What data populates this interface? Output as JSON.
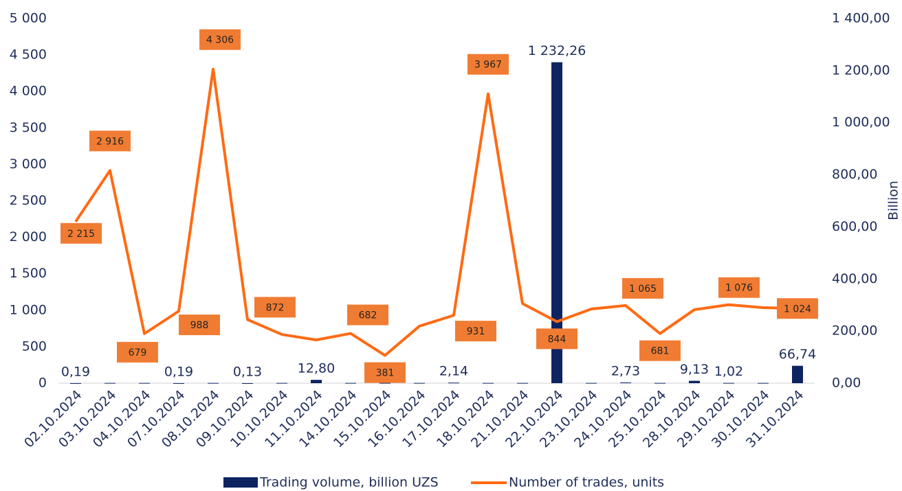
{
  "chart_data": {
    "type": "bar-line",
    "y2_label": "Billion",
    "categories": [
      "02.10.2024",
      "03.10.2024",
      "04.10.2024",
      "07.10.2024",
      "08.10.2024",
      "09.10.2024",
      "10.10.2024",
      "11.10.2024",
      "14.10.2024",
      "15.10.2024",
      "16.10.2024",
      "17.10.2024",
      "18.10.2024",
      "21.10.2024",
      "22.10.2024",
      "23.10.2024",
      "24.10.2024",
      "25.10.2024",
      "28.10.2024",
      "29.10.2024",
      "30.10.2024",
      "31.10.2024"
    ],
    "ylim": [
      0,
      5000
    ],
    "yticks": [
      0,
      500,
      {
        "value": 1000,
        "label": "1 000"
      },
      {
        "value": 1500,
        "label": "1 500"
      },
      {
        "value": 2000,
        "label": "2 000"
      },
      {
        "value": 2500,
        "label": "2 500"
      },
      {
        "value": 3000,
        "label": "3 000"
      },
      {
        "value": 3500,
        "label": "3 500"
      },
      {
        "value": 4000,
        "label": "4 000"
      },
      {
        "value": 4500,
        "label": "4 500"
      },
      {
        "value": 5000,
        "label": "5 000"
      }
    ],
    "y2lim": [
      0,
      1400
    ],
    "y2ticks": [
      {
        "value": 0,
        "label": "0,00"
      },
      {
        "value": 200,
        "label": "200,00"
      },
      {
        "value": 400,
        "label": "400,00"
      },
      {
        "value": 600,
        "label": "600,00"
      },
      {
        "value": 800,
        "label": "800,00"
      },
      {
        "value": 1000,
        "label": "1 000,00"
      },
      {
        "value": 1200,
        "label": "1 200,00"
      },
      {
        "value": 1400,
        "label": "1 400,00"
      }
    ],
    "series": [
      {
        "name": "Trading volume, billion UZS",
        "type": "bar",
        "axis": "y2",
        "color": "#0d2461",
        "values": [
          0.19,
          1,
          1,
          0.19,
          1,
          0.13,
          1,
          12.8,
          1,
          1,
          1,
          2.14,
          1,
          1,
          1232.26,
          1,
          2.73,
          1,
          9.13,
          1.02,
          1,
          66.74
        ],
        "value_labels": [
          "0,19",
          null,
          null,
          "0,19",
          null,
          "0,13",
          null,
          "12,80",
          null,
          null,
          null,
          "2,14",
          null,
          null,
          "1 232,26",
          null,
          "2,73",
          null,
          "9,13",
          "1,02",
          null,
          "66,74"
        ]
      },
      {
        "name": "Number of trades, units",
        "type": "line",
        "color": "#ff6a13",
        "label_color": "#f07c33",
        "values": [
          2215,
          2916,
          679,
          988,
          4306,
          872,
          668,
          593,
          682,
          381,
          782,
          931,
          3967,
          1092,
          844,
          1017,
          1065,
          681,
          1008,
          1076,
          1036,
          1024
        ],
        "value_labels": [
          "2 215",
          "2 916",
          "679",
          "988",
          "4 306",
          "872",
          null,
          null,
          "682",
          "381",
          null,
          "931",
          "3 967",
          null,
          "844",
          null,
          "1 065",
          "681",
          null,
          "1 076",
          null,
          "1 024"
        ]
      }
    ]
  }
}
